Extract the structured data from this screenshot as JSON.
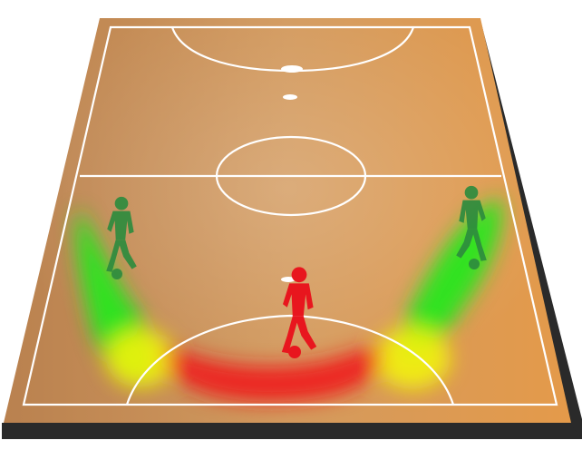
{
  "scene": {
    "court": {
      "floor_colors": [
        "#b9814f",
        "#d39a5e",
        "#e49a4a"
      ],
      "side_color": "#2a2a2a",
      "line_color": "#ffffff"
    },
    "heat_scale": {
      "low": "#28e61e",
      "mid": "#f2f20a",
      "high": "#ee1e1e"
    },
    "players": [
      {
        "id": "left-wing",
        "role": "attacker",
        "color": "#2e8b3e",
        "icon": "soccer-player-icon"
      },
      {
        "id": "right-wing",
        "role": "attacker",
        "color": "#2e8b3e",
        "icon": "soccer-player-icon"
      },
      {
        "id": "pivot",
        "role": "attacker",
        "color": "#e8161e",
        "icon": "soccer-player-icon"
      }
    ]
  }
}
